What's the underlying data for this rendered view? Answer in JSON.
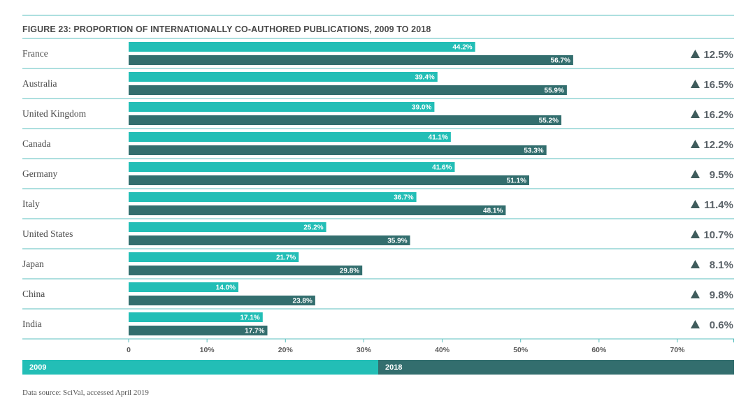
{
  "chart_data": {
    "type": "bar",
    "title": "FIGURE 23: PROPORTION OF INTERNATIONALLY CO-AUTHORED PUBLICATIONS, 2009 TO 2018",
    "categories": [
      "France",
      "Australia",
      "United Kingdom",
      "Canada",
      "Germany",
      "Italy",
      "United States",
      "Japan",
      "China",
      "India"
    ],
    "series": [
      {
        "name": "2009",
        "color": "#23beb6",
        "values": [
          44.2,
          39.4,
          39.0,
          41.1,
          41.6,
          36.7,
          25.2,
          21.7,
          14.0,
          17.1
        ],
        "labels": [
          "44.2%",
          "39.4%",
          "39.0%",
          "41.1%",
          "41.6%",
          "36.7%",
          "25.2%",
          "21.7%",
          "14.0%",
          "17.1%"
        ]
      },
      {
        "name": "2018",
        "color": "#336e6e",
        "values": [
          56.7,
          55.9,
          55.2,
          53.3,
          51.1,
          48.1,
          35.9,
          29.8,
          23.8,
          17.7
        ],
        "labels": [
          "56.7%",
          "55.9%",
          "55.2%",
          "53.3%",
          "51.1%",
          "48.1%",
          "35.9%",
          "29.8%",
          "23.8%",
          "17.7%"
        ]
      }
    ],
    "change_labels": [
      "12.5%",
      "16.5%",
      "16.2%",
      "12.2%",
      "9.5%",
      "11.4%",
      "10.7%",
      "8.1%",
      "9.8%",
      "0.6%"
    ],
    "change_icon": "triangle-up-icon",
    "xlim": [
      0,
      70
    ],
    "xticks": [
      0,
      10,
      20,
      30,
      40,
      50,
      60,
      70
    ],
    "xtick_labels": [
      "0",
      "10%",
      "20%",
      "30%",
      "40%",
      "50%",
      "60%",
      "70%"
    ],
    "xlabel": "",
    "ylabel": "",
    "orientation": "horizontal",
    "legend_placement": "bottom",
    "grid": false,
    "rule_color": "#5bbfbf",
    "text_color": "#4a4a4a"
  },
  "footer": {
    "source": "Data source: SciVal, accessed April 2019"
  }
}
